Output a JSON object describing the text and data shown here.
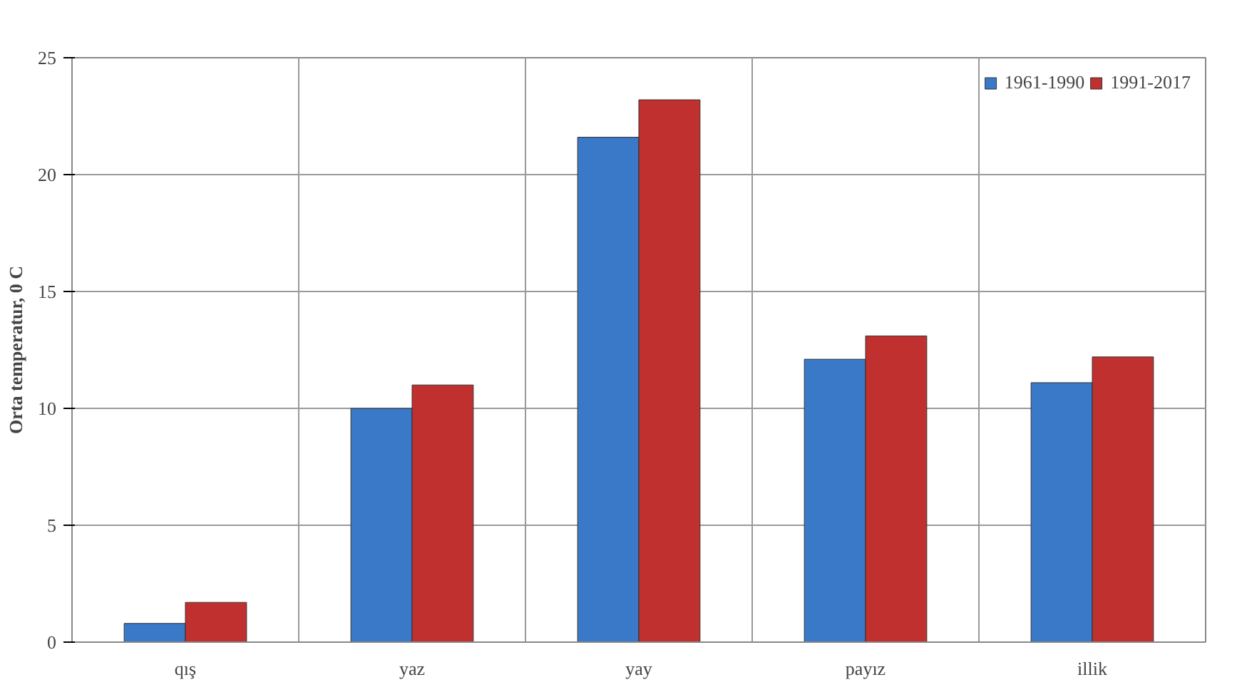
{
  "chart_data": {
    "type": "bar",
    "ylabel": "Orta temperatur, 0 C",
    "categories": [
      "qış",
      "yaz",
      "yay",
      "payız",
      "illik"
    ],
    "series": [
      {
        "name": "1961-1990",
        "color": "#3a78c8",
        "values": [
          0.8,
          10.0,
          21.6,
          12.1,
          11.1
        ]
      },
      {
        "name": "1991-2017",
        "color": "#c0302e",
        "values": [
          1.7,
          11.0,
          23.2,
          13.1,
          12.2
        ]
      }
    ],
    "ylim": [
      0,
      25
    ],
    "yticks": [
      0,
      5,
      10,
      15,
      20,
      25
    ],
    "grid": true,
    "legend": "top right"
  }
}
